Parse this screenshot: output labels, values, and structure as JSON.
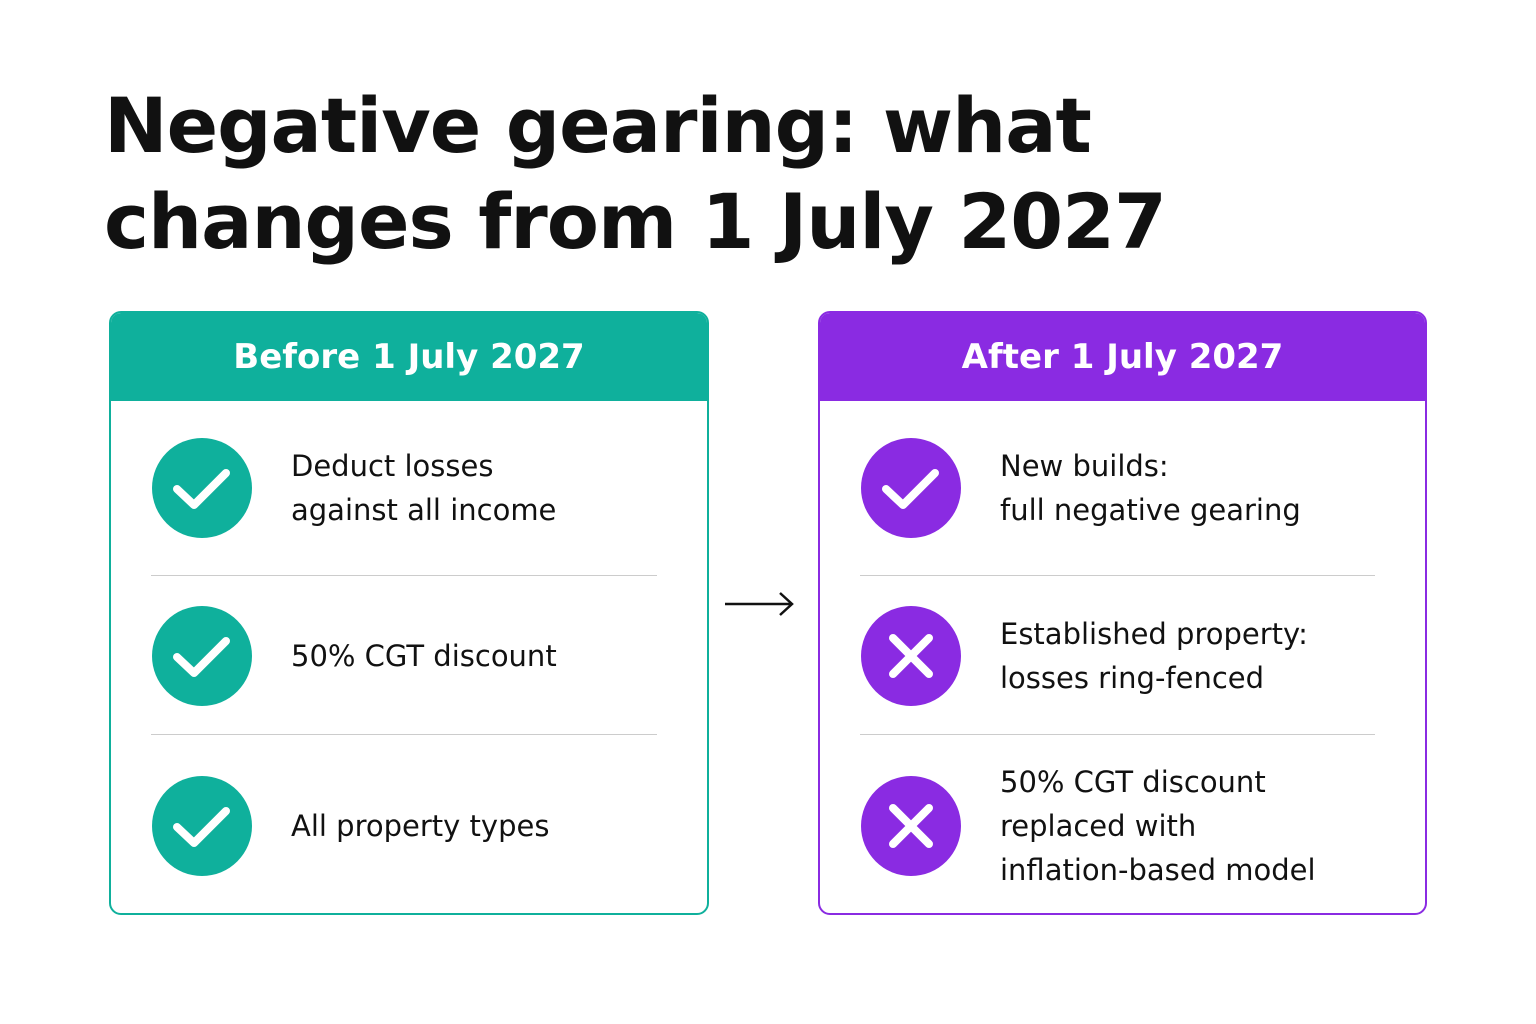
{
  "title": [
    "Negative gearing: what",
    "changes from 1 July 2027"
  ],
  "panels": [
    {
      "heading": "Before 1 July 2027",
      "color": "#0fb09c",
      "items": [
        {
          "icon": "check",
          "lines": [
            "Deduct losses",
            "against all income"
          ]
        },
        {
          "icon": "check",
          "lines": [
            "50% CGT discount"
          ]
        },
        {
          "icon": "check",
          "lines": [
            "All property types"
          ]
        }
      ]
    },
    {
      "heading": "After 1 July 2027",
      "color": "#8a2be2",
      "items": [
        {
          "icon": "check",
          "lines": [
            "New builds:",
            "full negative gearing"
          ]
        },
        {
          "icon": "cross",
          "lines": [
            "Established property:",
            "losses ring-fenced"
          ]
        },
        {
          "icon": "cross",
          "lines": [
            "50% CGT discount",
            "replaced with",
            "inflation-based model"
          ]
        }
      ]
    }
  ]
}
